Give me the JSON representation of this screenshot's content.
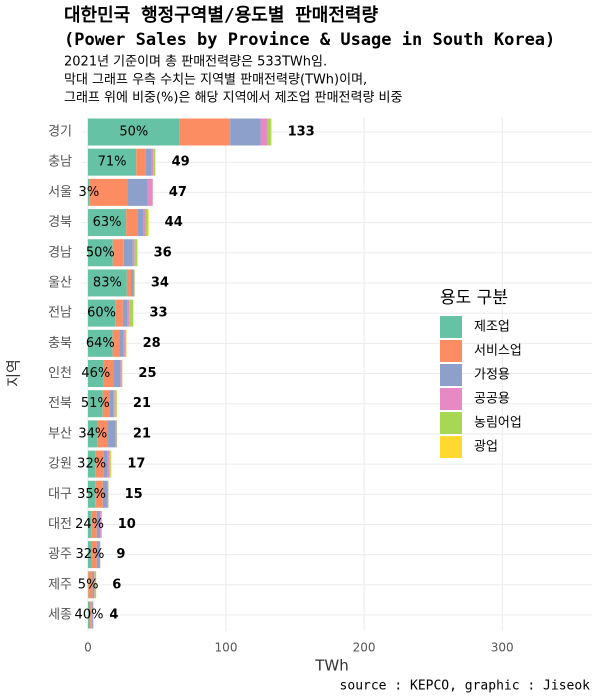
{
  "chart_data": {
    "type": "stacked_barh",
    "title": "대한민국 행정구역별/용도별 판매전력량",
    "title_en": "(Power Sales by Province & Usage in South Korea)",
    "subtitle": [
      "2021년 기준이며 총 판매전력량은 533TWh임.",
      "막대 그래프 우측 수치는 지역별 판매전력량(TWh)이며,",
      "그래프 위에 비중(%)은 해당 지역에서 제조업 판매전력량 비중"
    ],
    "x_label": "TWh",
    "y_label": "지역",
    "legend_title": "용도 구분",
    "caption": "source : KEPCO, graphic : Jiseok",
    "categories": [
      "경기",
      "충남",
      "서울",
      "경북",
      "경남",
      "울산",
      "전남",
      "충북",
      "인천",
      "전북",
      "부산",
      "강원",
      "대구",
      "대전",
      "광주",
      "제주",
      "세종"
    ],
    "series": [
      {
        "name": "제조업",
        "color": "#66c2a5",
        "values": [
          66.5,
          35,
          1.4,
          27.7,
          18,
          28.2,
          19.8,
          17.9,
          11.5,
          10.7,
          7.1,
          5.4,
          5.3,
          2.4,
          2.9,
          0.3,
          1.6
        ]
      },
      {
        "name": "서비스업",
        "color": "#fc8d62",
        "values": [
          36.5,
          7,
          27,
          8,
          8,
          3,
          5.5,
          5,
          7,
          5,
          7.5,
          6,
          5.5,
          4,
          3.5,
          3,
          1.2
        ]
      },
      {
        "name": "가정용",
        "color": "#8da0cb",
        "values": [
          22,
          4,
          15,
          4.5,
          6.5,
          1.8,
          3.3,
          3,
          5,
          3,
          5.3,
          3,
          3.5,
          2.5,
          2,
          1.2,
          0.8
        ]
      },
      {
        "name": "공공용",
        "color": "#e78ac3",
        "values": [
          5,
          1.2,
          3.5,
          1.5,
          1.3,
          0.6,
          1.2,
          0.9,
          1.1,
          0.7,
          0.8,
          1.1,
          0.5,
          1,
          0.5,
          0.3,
          0.3
        ]
      },
      {
        "name": "농림어업",
        "color": "#a6d854",
        "values": [
          2.5,
          1.5,
          0.1,
          1.8,
          2,
          0.3,
          3,
          1,
          0.3,
          1.5,
          0.3,
          1,
          0.2,
          0.1,
          0.1,
          1.2,
          0.1
        ]
      },
      {
        "name": "광업",
        "color": "#ffd92f",
        "values": [
          0.5,
          0.3,
          0,
          0.5,
          0.2,
          0.1,
          0.2,
          0.2,
          0.1,
          0.1,
          0,
          0.5,
          0,
          0,
          0,
          0,
          0
        ]
      }
    ],
    "totals": [
      133,
      49,
      47,
      44,
      36,
      34,
      33,
      28,
      25,
      21,
      21,
      17,
      15,
      10,
      9,
      6,
      4
    ],
    "manufacturing_share": {
      "values": [
        50,
        71,
        3,
        63,
        50,
        83,
        60,
        64,
        46,
        51,
        34,
        32,
        35,
        24,
        32,
        5,
        40
      ],
      "value_labels": [
        "50%",
        "71%",
        "3%",
        "63%",
        "50%",
        "83%",
        "60%",
        "64%",
        "46%",
        "51%",
        "34%",
        "32%",
        "35%",
        "24%",
        "32%",
        "5%",
        "40%"
      ]
    },
    "xlim": [
      -5,
      365
    ],
    "xticks": [
      0,
      100,
      200,
      300
    ],
    "grid": true,
    "legend": "right"
  }
}
